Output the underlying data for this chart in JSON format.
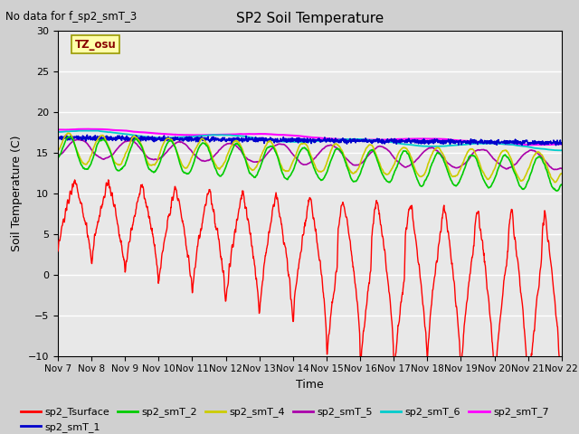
{
  "title": "SP2 Soil Temperature",
  "ylabel": "Soil Temperature (C)",
  "xlabel": "Time",
  "no_data_text": "No data for f_sp2_smT_3",
  "tz_label": "TZ_osu",
  "x_tick_labels": [
    "Nov 7",
    "Nov 8",
    "Nov 9",
    "Nov 10",
    "Nov 11",
    "Nov 12",
    "Nov 13",
    "Nov 14",
    "Nov 15",
    "Nov 16",
    "Nov 17",
    "Nov 18",
    "Nov 19",
    "Nov 20",
    "Nov 21",
    "Nov 22"
  ],
  "ylim": [
    -10,
    30
  ],
  "fig_bg": "#d0d0d0",
  "plot_bg": "#e8e8e8",
  "series_colors": {
    "sp2_Tsurface": "#ff0000",
    "sp2_smT_1": "#0000cc",
    "sp2_smT_2": "#00cc00",
    "sp2_smT_4": "#cccc00",
    "sp2_smT_5": "#aa00aa",
    "sp2_smT_6": "#00cccc",
    "sp2_smT_7": "#ff00ff"
  },
  "n_days": 15,
  "n_pts": 1500
}
